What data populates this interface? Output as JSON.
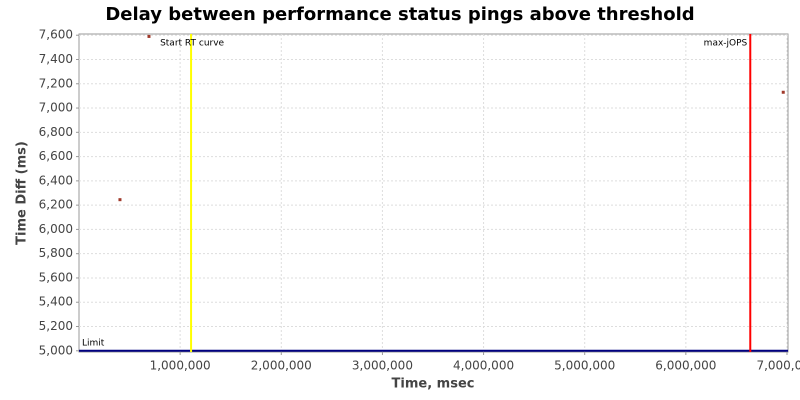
{
  "chart_data": {
    "type": "scatter",
    "title": "Delay between performance status pings above threshold",
    "x_label": "Time, msec",
    "y_label": "Time Diff (ms)",
    "series": [
      {
        "color": "#a0392a",
        "x": [
          405000,
          692000,
          6963000
        ],
        "values": [
          6245,
          7590,
          7130
        ]
      }
    ],
    "xlim": [
      0,
      7010000
    ],
    "xticks": [
      {
        "value": 1000000,
        "label": "1,000,000"
      },
      {
        "value": 2000000,
        "label": "2,000,000"
      },
      {
        "value": 3000000,
        "label": "3,000,000"
      },
      {
        "value": 4000000,
        "label": "4,000,000"
      },
      {
        "value": 5000000,
        "label": "5,000,000"
      },
      {
        "value": 6000000,
        "label": "6,000,000"
      },
      {
        "value": 7000000,
        "label": "7,000,000"
      }
    ],
    "ylim": [
      4990,
      7610
    ],
    "yticks": [
      {
        "value": 5000,
        "label": "5,000"
      },
      {
        "value": 5200,
        "label": "5,200"
      },
      {
        "value": 5400,
        "label": "5,400"
      },
      {
        "value": 5600,
        "label": "5,600"
      },
      {
        "value": 5800,
        "label": "5,800"
      },
      {
        "value": 6000,
        "label": "6,000"
      },
      {
        "value": 6200,
        "label": "6,200"
      },
      {
        "value": 6400,
        "label": "6,400"
      },
      {
        "value": 6600,
        "label": "6,600"
      },
      {
        "value": 6800,
        "label": "6,800"
      },
      {
        "value": 7000,
        "label": "7,000"
      },
      {
        "value": 7200,
        "label": "7,200"
      },
      {
        "value": 7400,
        "label": "7,400"
      },
      {
        "value": 7600,
        "label": "7,600"
      }
    ],
    "grid": true,
    "x_markers": [
      {
        "value": 1108000,
        "label": "Start RT curve",
        "color": "#ffff00"
      },
      {
        "value": 6637000,
        "label": "max-jOPS",
        "color": "#ff0000"
      }
    ],
    "y_markers": [
      {
        "value": 5000,
        "label": "Limit",
        "color": "#000080"
      }
    ]
  }
}
